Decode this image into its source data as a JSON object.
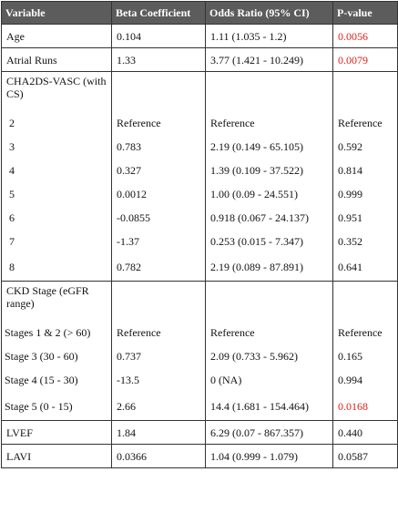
{
  "headers": {
    "variable": "Variable",
    "beta": "Beta Coefficient",
    "odds": "Odds Ratio (95% CI)",
    "p": "P-value"
  },
  "rows_top": [
    {
      "variable": "Age",
      "beta": "0.104",
      "odds": "1.11 (1.035 - 1.2)",
      "p": "0.0056",
      "significant": true
    },
    {
      "variable": "Atrial Runs",
      "beta": "1.33",
      "odds": "3.77 (1.421 - 10.249)",
      "p": "0.0079",
      "significant": true
    }
  ],
  "cha2ds": {
    "label": "CHA2DS-VASC (with CS)",
    "rows": [
      {
        "variable": "2",
        "beta": "Reference",
        "odds": "Reference",
        "p": "Reference"
      },
      {
        "variable": "3",
        "beta": "0.783",
        "odds": "2.19 (0.149 - 65.105)",
        "p": "0.592"
      },
      {
        "variable": "4",
        "beta": "0.327",
        "odds": "1.39 (0.109 - 37.522)",
        "p": "0.814"
      },
      {
        "variable": "5",
        "beta": "0.0012",
        "odds": "1.00 (0.09 - 24.551)",
        "p": "0.999"
      },
      {
        "variable": "6",
        "beta": "-0.0855",
        "odds": "0.918 (0.067 - 24.137)",
        "p": "0.951"
      },
      {
        "variable": "7",
        "beta": "-1.37",
        "odds": "0.253 (0.015 - 7.347)",
        "p": "0.352"
      },
      {
        "variable": "8",
        "beta": "0.782",
        "odds": "2.19 (0.089 - 87.891)",
        "p": "0.641"
      }
    ]
  },
  "ckd": {
    "label": "CKD Stage (eGFR range)",
    "rows": [
      {
        "variable": "Stages 1 & 2 (> 60)",
        "beta": "Reference",
        "odds": "Reference",
        "p": "Reference"
      },
      {
        "variable": "Stage 3 (30 - 60)",
        "beta": "0.737",
        "odds": "2.09 (0.733 - 5.962)",
        "p": "0.165"
      },
      {
        "variable": "Stage 4 (15 - 30)",
        "beta": "-13.5",
        "odds": "0 (NA)",
        "p": "0.994"
      },
      {
        "variable": "Stage 5 (0 - 15)",
        "beta": "2.66",
        "odds": "14.4 (1.681 - 154.464)",
        "p": "0.0168",
        "significant": true
      }
    ]
  },
  "rows_bottom": [
    {
      "variable": "LVEF",
      "beta": "1.84",
      "odds": "6.29 (0.07 - 867.357)",
      "p": "0.440"
    },
    {
      "variable": "LAVI",
      "beta": "0.0366",
      "odds": "1.04 (0.999 - 1.079)",
      "p": "0.0587"
    }
  ],
  "colors": {
    "header_bg": "#5c5c5c",
    "header_text": "#ffffff",
    "significant": "#e0201b",
    "border": "#333333"
  }
}
